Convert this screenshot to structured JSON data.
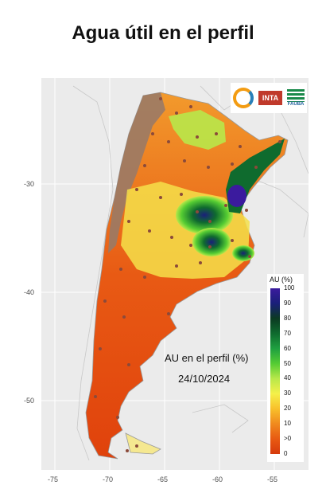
{
  "title": "Agua útil en el perfil",
  "map": {
    "annotation_line1": "AU en el perfil (%)",
    "annotation_line2": "24/10/2024",
    "logos": [
      "sun-wave-logo",
      "inta-logo",
      "fauba-logo"
    ],
    "logo_text": {
      "inta": "INTA",
      "fauba": "FAUBA"
    },
    "x_axis_ticks": [
      "-75",
      "-70",
      "-65",
      "-60",
      "-55"
    ],
    "y_axis_ticks": [
      "-30",
      "-40",
      "-50"
    ]
  },
  "legend": {
    "title": "AU (%)",
    "ticks": [
      "100",
      "90",
      "80",
      "70",
      "60",
      "50",
      "40",
      "30",
      "20",
      "10",
      ">0",
      "0"
    ],
    "colors": [
      "#3b1b9e",
      "#1a1f7a",
      "#0b3a22",
      "#0f6b2e",
      "#1fa040",
      "#55cc33",
      "#b8e84a",
      "#f5f04a",
      "#f8c02b",
      "#f08a1e",
      "#e85a12",
      "#d63a0c"
    ]
  },
  "colors": {
    "dry": "#e8581a",
    "wet": "#2a1b8a",
    "mountain": "#9a7a66",
    "neighbor": "#cccccc"
  }
}
